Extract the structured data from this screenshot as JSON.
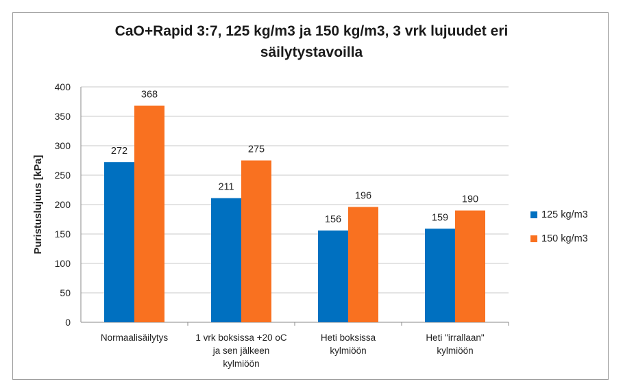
{
  "chart_data": {
    "type": "bar",
    "title": "CaO+Rapid 3:7, 125 kg/m3 ja 150 kg/m3, 3 vrk lujuudet eri säilytystavoilla",
    "title_lines": [
      "CaO+Rapid 3:7, 125 kg/m3 ja 150 kg/m3, 3 vrk lujuudet eri",
      "säilytystavoilla"
    ],
    "ylabel": "Puristuslujuus [kPa]",
    "xlabel": "",
    "ylim": [
      0,
      400
    ],
    "yticks": [
      0,
      50,
      100,
      150,
      200,
      250,
      300,
      350,
      400
    ],
    "grid": true,
    "legend_position": "right",
    "categories": [
      [
        "Normaalisäilytys"
      ],
      [
        "1 vrk boksissa +20 oC",
        "ja sen jälkeen",
        "kylmiöön"
      ],
      [
        "Heti boksissa",
        "kylmiöön"
      ],
      [
        "Heti \"irrallaan\"",
        "kylmiöön"
      ]
    ],
    "series": [
      {
        "name": "125 kg/m3",
        "color": "#0070C0",
        "values": [
          272,
          211,
          156,
          159
        ]
      },
      {
        "name": "150 kg/m3",
        "color": "#F97120",
        "values": [
          368,
          275,
          196,
          190
        ]
      }
    ]
  }
}
